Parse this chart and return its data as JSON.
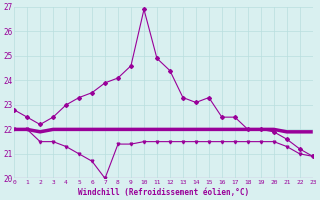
{
  "xlabel": "Windchill (Refroidissement éolien,°C)",
  "background_color": "#d9f0f0",
  "grid_color": "#b8dede",
  "line_color": "#990099",
  "ylim": [
    20,
    27
  ],
  "xlim": [
    0,
    23
  ],
  "yticks": [
    20,
    21,
    22,
    23,
    24,
    25,
    26,
    27
  ],
  "xticks": [
    0,
    1,
    2,
    3,
    4,
    5,
    6,
    7,
    8,
    9,
    10,
    11,
    12,
    13,
    14,
    15,
    16,
    17,
    18,
    19,
    20,
    21,
    22,
    23
  ],
  "series1_x": [
    0,
    1,
    2,
    3,
    4,
    5,
    6,
    7,
    8,
    9,
    10,
    11,
    12,
    13,
    14,
    15,
    16,
    17,
    18,
    19,
    20,
    21,
    22,
    23
  ],
  "series1_y": [
    22.8,
    22.5,
    22.2,
    22.5,
    23.0,
    23.3,
    23.5,
    23.9,
    24.1,
    24.6,
    26.9,
    24.9,
    24.4,
    23.3,
    23.1,
    23.3,
    22.5,
    22.5,
    22.0,
    22.0,
    21.9,
    21.6,
    21.2,
    20.9
  ],
  "series2_x": [
    0,
    1,
    2,
    3,
    4,
    5,
    6,
    7,
    8,
    9,
    10,
    11,
    12,
    13,
    14,
    15,
    16,
    17,
    18,
    19,
    20,
    21,
    22,
    23
  ],
  "series2_y": [
    22.0,
    22.0,
    21.5,
    21.5,
    21.3,
    21.0,
    20.7,
    20.0,
    21.4,
    21.4,
    21.5,
    21.5,
    21.5,
    21.5,
    21.5,
    21.5,
    21.5,
    21.5,
    21.5,
    21.5,
    21.5,
    21.3,
    21.0,
    20.9
  ],
  "series3_x": [
    0,
    1,
    2,
    3,
    4,
    5,
    6,
    7,
    8,
    9,
    10,
    11,
    12,
    13,
    14,
    15,
    16,
    17,
    18,
    19,
    20,
    21,
    22,
    23
  ],
  "series3_y": [
    22.0,
    22.0,
    21.9,
    22.0,
    22.0,
    22.0,
    22.0,
    22.0,
    22.0,
    22.0,
    22.0,
    22.0,
    22.0,
    22.0,
    22.0,
    22.0,
    22.0,
    22.0,
    22.0,
    22.0,
    22.0,
    21.9,
    21.9,
    21.9
  ]
}
